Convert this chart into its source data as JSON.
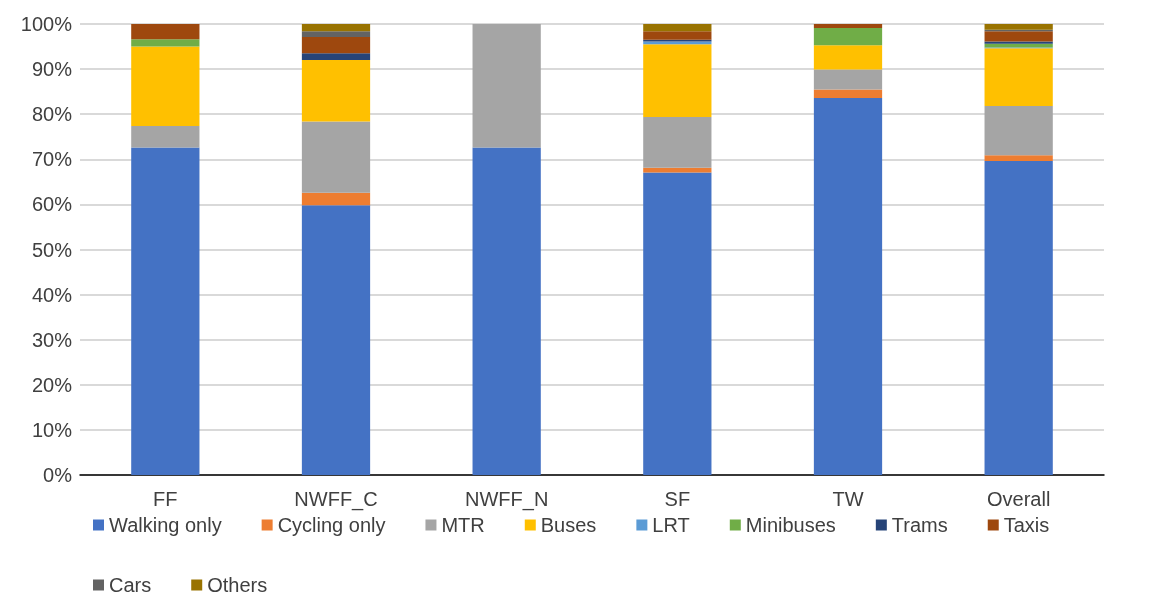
{
  "chart_data": {
    "type": "bar",
    "stacked": true,
    "categories": [
      "FF",
      "NWFF_C",
      "NWFF_N",
      "SF",
      "TW",
      "Overall"
    ],
    "series": [
      {
        "name": "Walking only",
        "color": "#4472c4",
        "values": [
          72.6,
          59.8,
          72.6,
          67.1,
          83.6,
          69.6
        ]
      },
      {
        "name": "Cycling only",
        "color": "#ed7d31",
        "values": [
          0,
          2.8,
          0,
          1.0,
          1.9,
          1.3
        ]
      },
      {
        "name": "MTR",
        "color": "#a5a5a5",
        "values": [
          4.8,
          15.8,
          27.4,
          11.3,
          4.4,
          10.9
        ]
      },
      {
        "name": "Buses",
        "color": "#ffc000",
        "values": [
          17.6,
          13.6,
          0,
          16.1,
          5.4,
          12.8
        ]
      },
      {
        "name": "LRT",
        "color": "#5b9bd5",
        "values": [
          0,
          0,
          0,
          0.6,
          0,
          0.2
        ]
      },
      {
        "name": "Minibuses",
        "color": "#70ad47",
        "values": [
          1.6,
          0,
          0,
          0,
          3.8,
          0.8
        ]
      },
      {
        "name": "Trams",
        "color": "#264478",
        "values": [
          0,
          1.5,
          0,
          0.4,
          0,
          0.5
        ]
      },
      {
        "name": "Taxis",
        "color": "#9e480e",
        "values": [
          3.4,
          3.6,
          0,
          1.9,
          0.9,
          2.3
        ]
      },
      {
        "name": "Cars",
        "color": "#636363",
        "values": [
          0,
          1.3,
          0,
          0,
          0,
          0.3
        ]
      },
      {
        "name": "Others",
        "color": "#997300",
        "values": [
          0,
          1.6,
          0,
          1.6,
          0,
          1.3
        ]
      }
    ],
    "ylim": [
      0,
      100
    ],
    "yticks": [
      {
        "value": 0,
        "label": "0%"
      },
      {
        "value": 10,
        "label": "10%"
      },
      {
        "value": 20,
        "label": "20%"
      },
      {
        "value": 30,
        "label": "30%"
      },
      {
        "value": 40,
        "label": "40%"
      },
      {
        "value": 50,
        "label": "50%"
      },
      {
        "value": 60,
        "label": "60%"
      },
      {
        "value": 70,
        "label": "70%"
      },
      {
        "value": 80,
        "label": "80%"
      },
      {
        "value": 90,
        "label": "90%"
      },
      {
        "value": 100,
        "label": "100%"
      }
    ],
    "grid": "y",
    "legend": "bottom"
  }
}
